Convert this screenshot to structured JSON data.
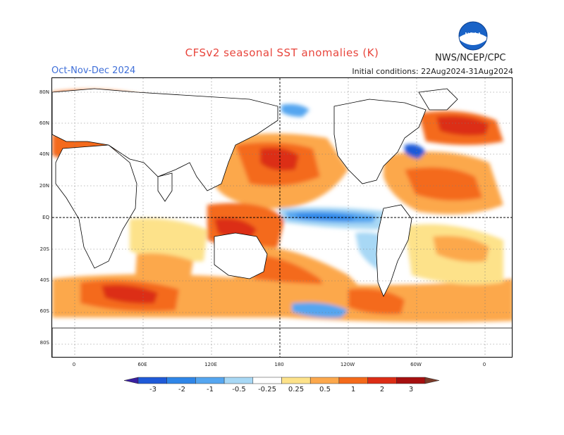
{
  "title": "CFSv2 seasonal SST anomalies (K)",
  "season": "Oct-Nov-Dec 2024",
  "initial_conditions": "Initial conditions: 22Aug2024-31Aug2024",
  "agency": "NWS/NCEP/CPC",
  "logo_text": "NOAA",
  "lat_labels": [
    "80N",
    "60N",
    "40N",
    "20N",
    "EQ",
    "20S",
    "40S",
    "60S",
    "80S"
  ],
  "lon_labels": [
    "0",
    "60E",
    "120E",
    "180",
    "120W",
    "60W",
    "0"
  ],
  "colorbar": {
    "labels": [
      "-3",
      "-2",
      "-1",
      "-0.5",
      "-0.25",
      "0.25",
      "0.5",
      "1",
      "2",
      "3"
    ],
    "colors": [
      "#3a1fa0",
      "#1f5ad8",
      "#2f86e8",
      "#55a6f0",
      "#a8d8f5",
      "#ffffff",
      "#fde28a",
      "#fca84c",
      "#f46a1a",
      "#dc2d15",
      "#a60f0f",
      "#7a3b2a"
    ]
  },
  "colors": {
    "land_outline": "#000000",
    "title_red": "#e8453c",
    "season_blue": "#3f6fd8"
  }
}
